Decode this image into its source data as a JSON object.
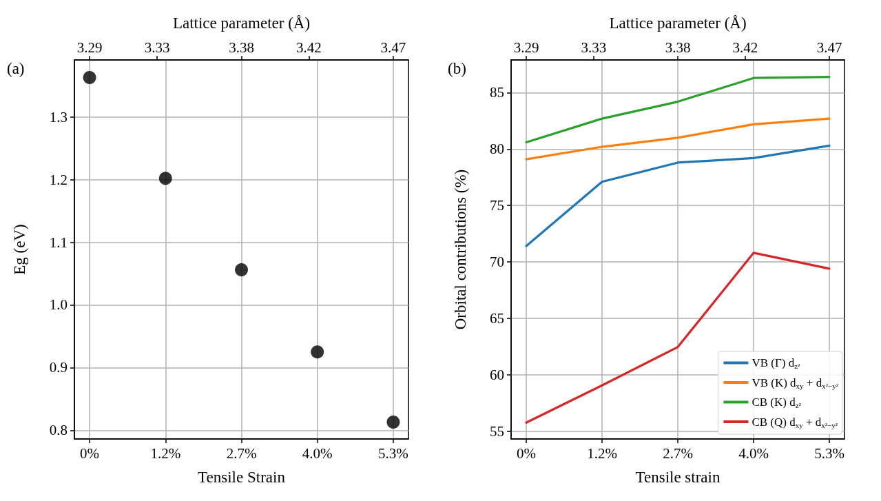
{
  "chart_data": [
    {
      "type": "scatter",
      "annotations": [
        "(a)"
      ],
      "xlabel": "Tensile Strain",
      "ylabel": "Eg (eV)",
      "x2label": "Lattice parameter (Å)",
      "categories": [
        "0%",
        "1.2%",
        "2.7%",
        "4.0%",
        "5.3%"
      ],
      "values": [
        1.363,
        1.202,
        1.056,
        0.925,
        0.813
      ],
      "color": "#000000",
      "ylim": [
        0.786,
        1.391
      ],
      "yticks": [
        0.8,
        0.9,
        {
          "value": 1,
          "label": "1.0"
        },
        1.1,
        1.2,
        1.3
      ],
      "x2lim": [
        3.281,
        3.479
      ],
      "x2ticks": [
        3.29,
        3.33,
        3.38,
        3.42,
        3.47
      ],
      "grid": true,
      "marker": "circle"
    },
    {
      "type": "line",
      "annotations": [
        "(b)"
      ],
      "xlabel": "Tensile strain",
      "ylabel": "Orbital contributions (%)",
      "x2label": "Lattice parameter (Å)",
      "categories": [
        "0%",
        "1.2%",
        "2.7%",
        "4.0%",
        "5.3%"
      ],
      "series": [
        {
          "name": "VB (Γ) d$_{z²}$",
          "color": "#1f77b4",
          "values": [
            71.4,
            77.1,
            78.8,
            79.2,
            80.3
          ]
        },
        {
          "name": "VB (K) d$_{xy}$ + d$_{x²−y²}$",
          "color": "#ff7f0e",
          "values": [
            79.1,
            80.2,
            81.0,
            82.2,
            82.7
          ]
        },
        {
          "name": "CB (K) d$_{z²}$",
          "color": "#2ca02c",
          "values": [
            80.6,
            82.7,
            84.2,
            86.3,
            86.4
          ]
        },
        {
          "name": "CB (Q) d$_{xy}$ + d$_{x²−y²}$",
          "color": "#d62728",
          "values": [
            55.75,
            59.05,
            62.45,
            70.8,
            69.4
          ]
        }
      ],
      "ylim": [
        54.3,
        87.9
      ],
      "yticks": [
        55,
        60,
        65,
        70,
        75,
        80,
        85
      ],
      "x2lim": [
        3.281,
        3.479
      ],
      "x2ticks": [
        3.29,
        3.33,
        3.38,
        3.42,
        3.47
      ],
      "grid": true,
      "legend": "bottom right",
      "marker": "none",
      "line_style": "solid"
    }
  ]
}
